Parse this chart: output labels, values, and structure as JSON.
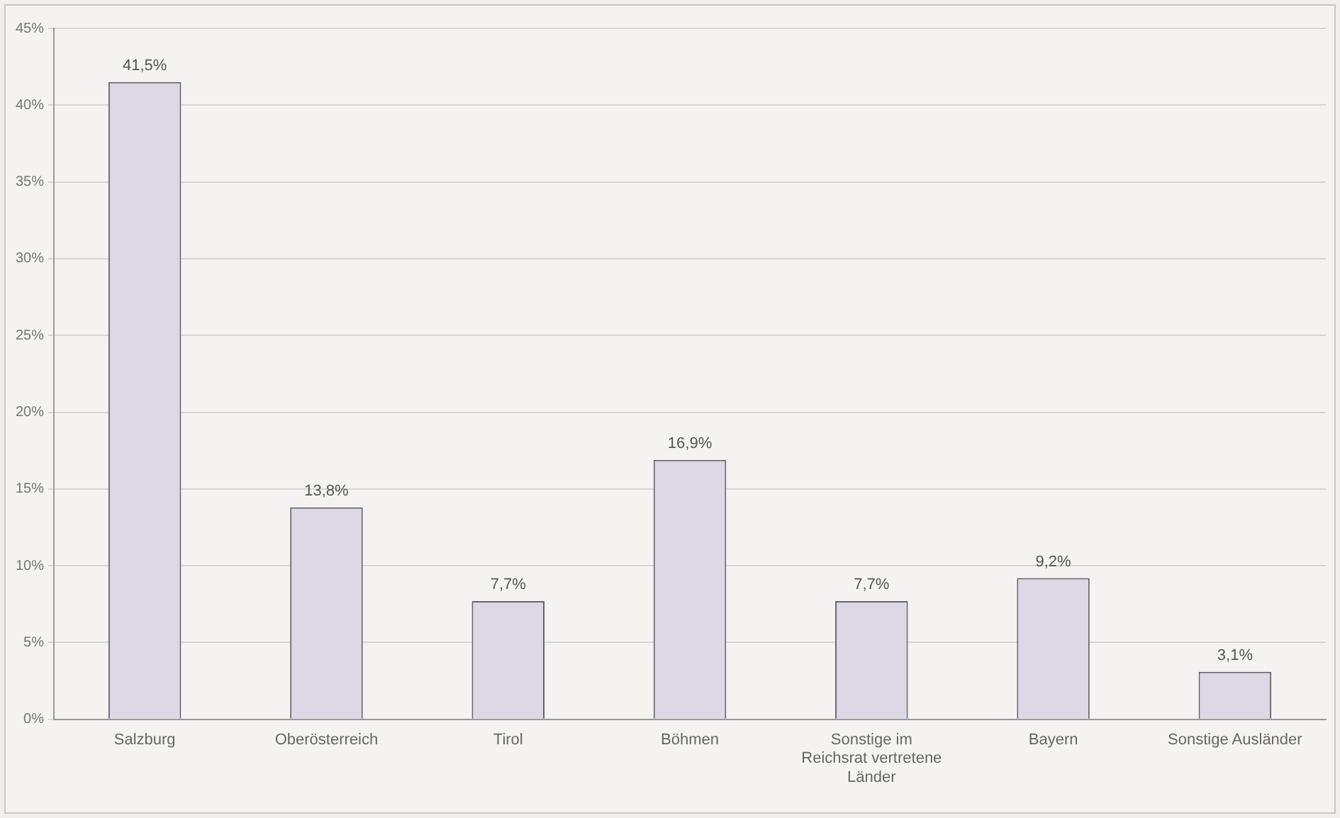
{
  "chart_data": {
    "type": "bar",
    "categories": [
      "Salzburg",
      "Oberösterreich",
      "Tirol",
      "Böhmen",
      "Sonstige im Reichsrat vertretene Länder",
      "Bayern",
      "Sonstige Ausländer"
    ],
    "values": [
      41.5,
      13.8,
      7.7,
      16.9,
      7.7,
      9.2,
      3.1
    ],
    "value_labels": [
      "41,5%",
      "13,8%",
      "7,7%",
      "16,9%",
      "7,7%",
      "9,2%",
      "3,1%"
    ],
    "color": "#dcd8e6",
    "ylim": [
      0,
      45
    ],
    "yticks": [
      {
        "value": 0,
        "label": "0%"
      },
      {
        "value": 5,
        "label": "5%"
      },
      {
        "value": 10,
        "label": "10%"
      },
      {
        "value": 15,
        "label": "15%"
      },
      {
        "value": 20,
        "label": "20%"
      },
      {
        "value": 25,
        "label": "25%"
      },
      {
        "value": 30,
        "label": "30%"
      },
      {
        "value": 35,
        "label": "35%"
      },
      {
        "value": 40,
        "label": "40%"
      },
      {
        "value": 45,
        "label": "45%"
      }
    ],
    "grid": "y"
  }
}
